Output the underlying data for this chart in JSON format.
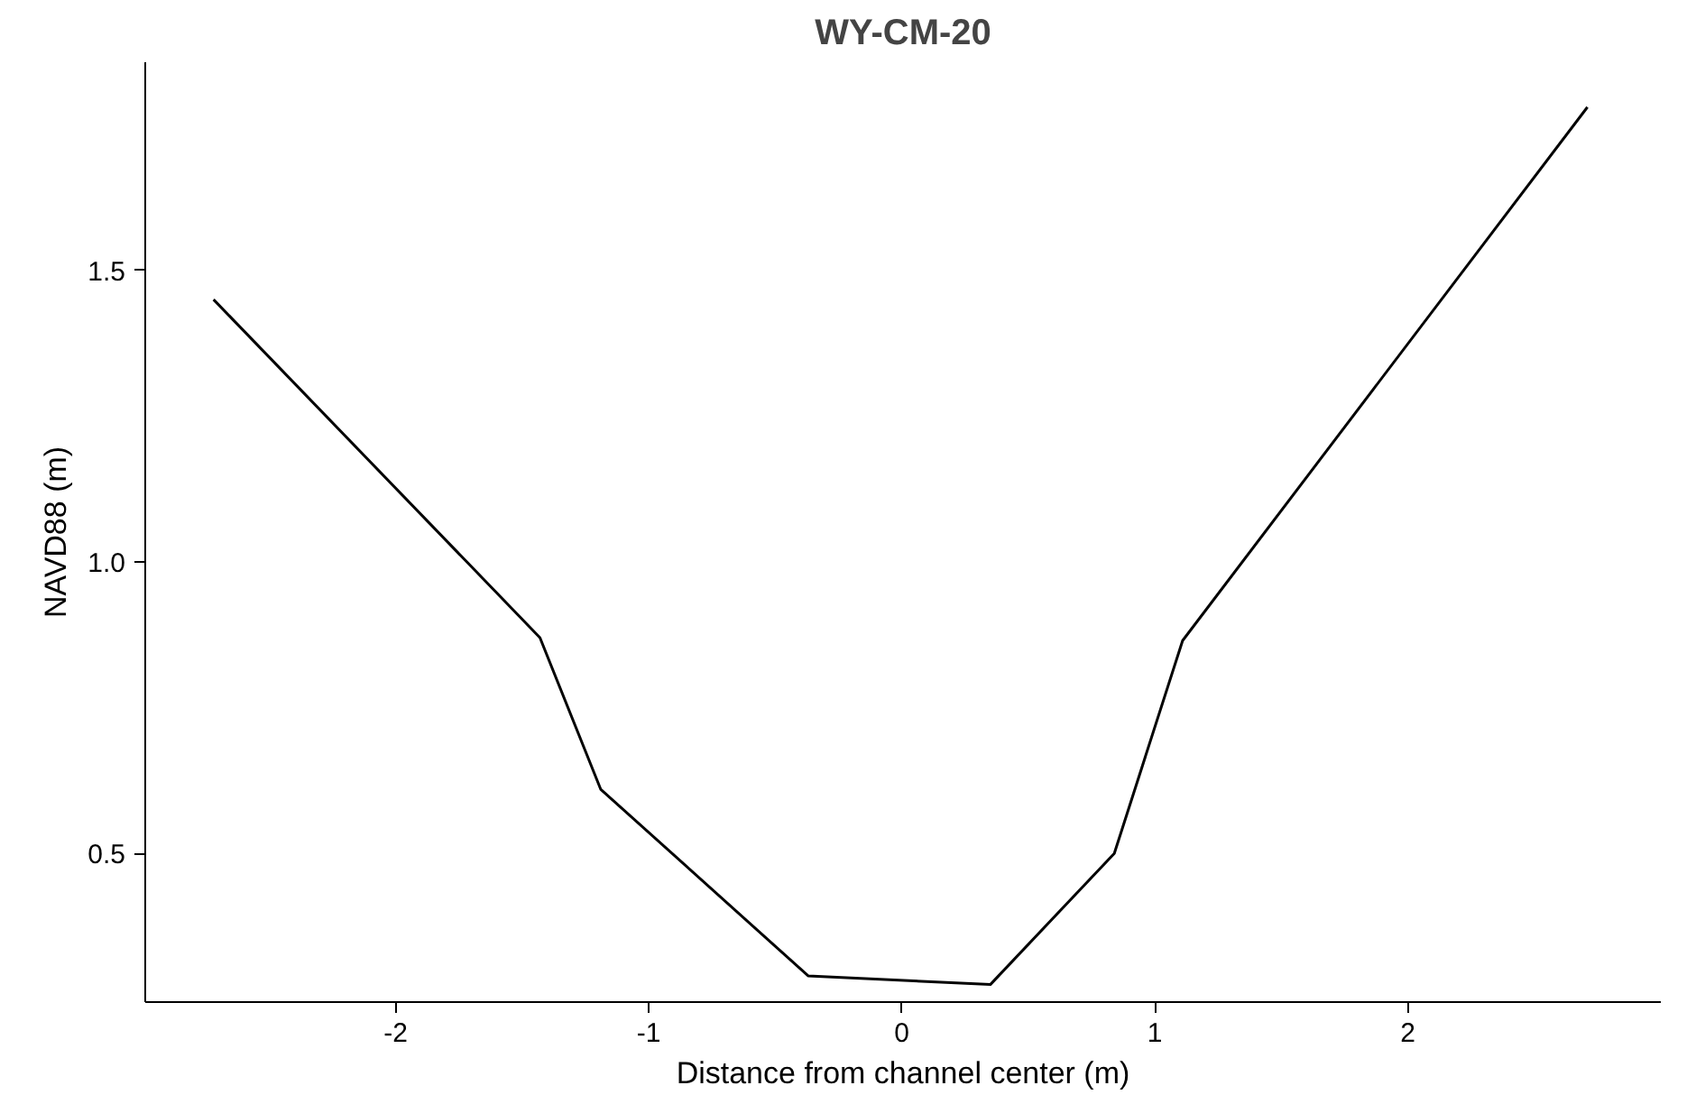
{
  "chart_data": {
    "type": "line",
    "title": "WY-CM-20",
    "xlabel": "Distance from channel center (m)",
    "ylabel": "NAVD88 (m)",
    "x": [
      -2.72,
      -1.43,
      -1.19,
      -0.37,
      0.35,
      0.84,
      1.11,
      2.71
    ],
    "series": [
      {
        "color": "#000000",
        "values": [
          1.45,
          0.87,
          0.61,
          0.29,
          0.275,
          0.5,
          0.865,
          1.78
        ]
      }
    ],
    "xlim": [
      -2.99,
      3.0
    ],
    "ylim": [
      0.245,
      1.857
    ],
    "xticks": [
      -2,
      -1,
      0,
      1,
      2
    ],
    "yticks": [
      {
        "value": 0.5,
        "label": "0.5"
      },
      {
        "value": 1.0,
        "label": "1.0"
      },
      {
        "value": 1.5,
        "label": "1.5"
      }
    ],
    "grid": false,
    "marker": "none",
    "line_style": "solid"
  }
}
